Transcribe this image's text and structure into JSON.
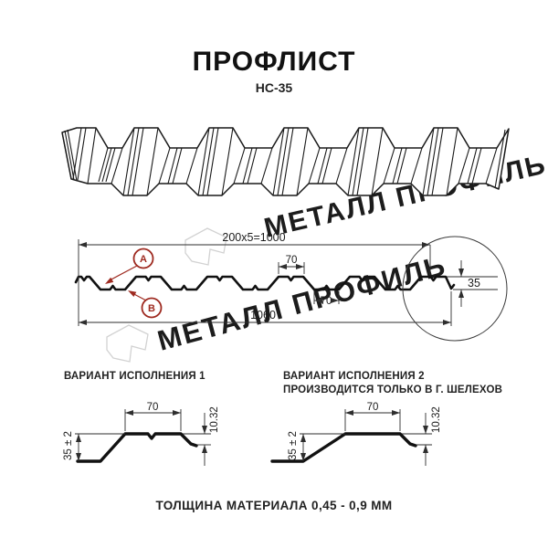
{
  "title": "ПРОФЛИСТ",
  "subtitle": "НС-35",
  "watermark": {
    "text": "МЕТАЛЛ ПРОФИЛЬ",
    "color": "#c9c9c9"
  },
  "cross_section": {
    "dim_cover_width": "200x5=1000",
    "dim_full_width": "1060",
    "dim_top_flange": "70",
    "dim_bottom_flange": "70",
    "dim_height": "35",
    "label_a": "А",
    "label_b": "В",
    "accent_color": "#9e2a20"
  },
  "variant1": {
    "heading": "ВАРИАНТ ИСПОЛНЕНИЯ 1",
    "dim_top": "70",
    "dim_lip": "10.32",
    "dim_height": "35 ± 2"
  },
  "variant2": {
    "heading_line1": "ВАРИАНТ ИСПОЛНЕНИЯ 2",
    "heading_line2": "ПРОИЗВОДИТСЯ ТОЛЬКО В Г. ШЕЛЕХОВ",
    "dim_top": "70",
    "dim_lip": "10.32",
    "dim_height": "35 ± 2"
  },
  "footer": "ТОЛЩИНА МАТЕРИАЛА 0,45 - 0,9 ММ"
}
